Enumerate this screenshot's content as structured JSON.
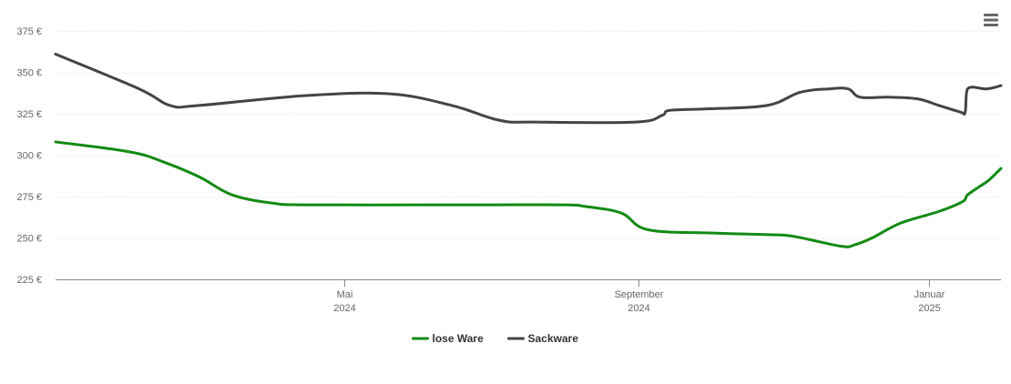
{
  "chart_data": {
    "type": "line",
    "title": "",
    "xlabel": "",
    "ylabel": "",
    "ylim": [
      225,
      375
    ],
    "y_ticks": [
      "225 €",
      "250 €",
      "275 €",
      "300 €",
      "325 €",
      "350 €",
      "375 €"
    ],
    "y_tick_values": [
      225,
      250,
      275,
      300,
      325,
      350,
      375
    ],
    "x_range": [
      "2024-01-01",
      "2025-01-31"
    ],
    "x_ticks": [
      {
        "date": "2024-05-01",
        "month": "Mai",
        "year": "2024"
      },
      {
        "date": "2024-09-01",
        "month": "September",
        "year": "2024"
      },
      {
        "date": "2025-01-01",
        "month": "Januar",
        "year": "2025"
      }
    ],
    "grid": "horizontal",
    "legend_position": "bottom-center",
    "series": [
      {
        "name": "lose Ware",
        "color": "#138a13",
        "points": [
          [
            "2024-01-01",
            308
          ],
          [
            "2024-02-01",
            302
          ],
          [
            "2024-02-15",
            296
          ],
          [
            "2024-03-01",
            287
          ],
          [
            "2024-03-15",
            276
          ],
          [
            "2024-04-01",
            271
          ],
          [
            "2024-04-15",
            270
          ],
          [
            "2024-06-01",
            270
          ],
          [
            "2024-07-01",
            270
          ],
          [
            "2024-08-01",
            270
          ],
          [
            "2024-08-10",
            269
          ],
          [
            "2024-08-25",
            265
          ],
          [
            "2024-09-05",
            255
          ],
          [
            "2024-10-01",
            253
          ],
          [
            "2024-10-25",
            252
          ],
          [
            "2024-11-05",
            251
          ],
          [
            "2024-11-25",
            245
          ],
          [
            "2024-12-01",
            246
          ],
          [
            "2024-12-08",
            250
          ],
          [
            "2024-12-20",
            259
          ],
          [
            "2025-01-05",
            266
          ],
          [
            "2025-01-15",
            272
          ],
          [
            "2025-01-17",
            276
          ],
          [
            "2025-01-22",
            281
          ],
          [
            "2025-01-26",
            285
          ],
          [
            "2025-01-31",
            292
          ]
        ]
      },
      {
        "name": "Sackware",
        "color": "#434348",
        "points": [
          [
            "2024-01-01",
            361
          ],
          [
            "2024-02-05",
            340
          ],
          [
            "2024-02-18",
            330
          ],
          [
            "2024-03-01",
            330
          ],
          [
            "2024-04-15",
            336
          ],
          [
            "2024-05-20",
            337
          ],
          [
            "2024-06-15",
            330
          ],
          [
            "2024-07-05",
            321
          ],
          [
            "2024-07-20",
            320
          ],
          [
            "2024-08-31",
            320
          ],
          [
            "2024-09-11",
            324
          ],
          [
            "2024-09-14",
            327
          ],
          [
            "2024-10-01",
            328
          ],
          [
            "2024-10-25",
            330
          ],
          [
            "2024-11-08",
            338
          ],
          [
            "2024-11-20",
            340
          ],
          [
            "2024-11-28",
            340
          ],
          [
            "2024-12-03",
            335
          ],
          [
            "2024-12-15",
            335
          ],
          [
            "2024-12-27",
            334
          ],
          [
            "2025-01-05",
            330
          ],
          [
            "2025-01-14",
            326
          ],
          [
            "2025-01-16",
            326
          ],
          [
            "2025-01-17",
            340
          ],
          [
            "2025-01-25",
            340
          ],
          [
            "2025-01-31",
            342
          ]
        ]
      }
    ]
  },
  "icons": {
    "menu": "hamburger-menu-icon"
  }
}
